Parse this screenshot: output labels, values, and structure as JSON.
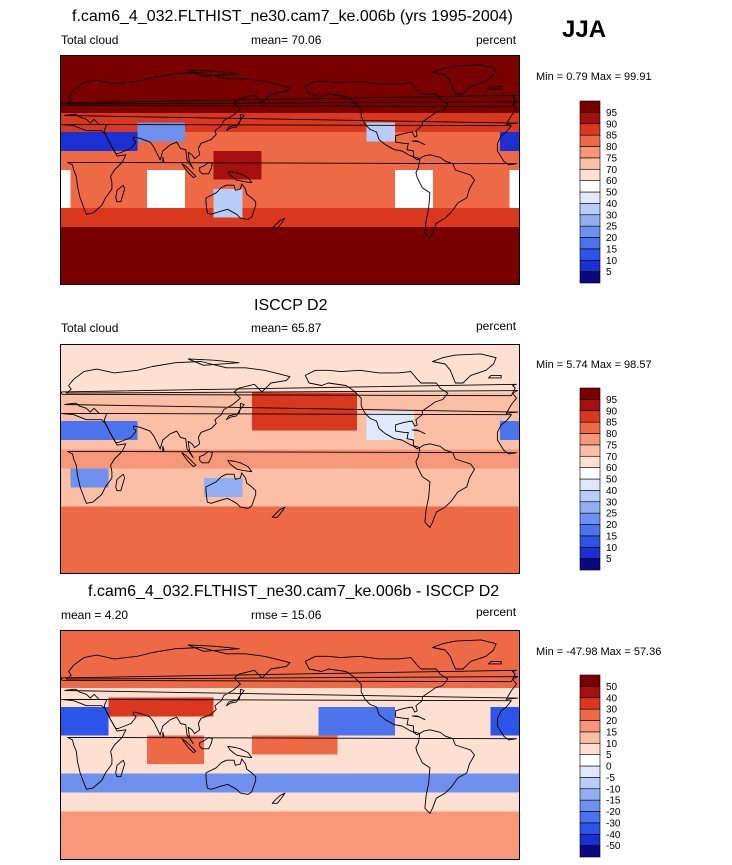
{
  "season": "JJA",
  "panels": [
    {
      "title": "f.cam6_4_032.FLTHIST_ne30.cam7_ke.006b (yrs 1995-2004)",
      "left_label": "Total cloud",
      "center_label": "mean=  70.06",
      "right_label": "percent",
      "minmax": "Min =   0.79 Max =  99.91",
      "colorbar": {
        "levels": [
          "5",
          "10",
          "15",
          "20",
          "25",
          "30",
          "40",
          "50",
          "60",
          "70",
          "75",
          "80",
          "85",
          "90",
          "95"
        ],
        "colors": [
          "#0a0a80",
          "#1a30d0",
          "#2a55e8",
          "#4b73ec",
          "#6e90ee",
          "#93aff2",
          "#b8cdf6",
          "#dfe9fb",
          "#ffffff",
          "#fde0d2",
          "#fbbfa5",
          "#f59778",
          "#ee6a47",
          "#d9381e",
          "#a50f0f",
          "#7a0000"
        ]
      },
      "chart_data": {
        "type": "heatmap",
        "variable": "Total cloud",
        "units": "percent",
        "mean": 70.06,
        "min": 0.79,
        "max": 99.91
      }
    },
    {
      "title": "ISCCP D2",
      "left_label": "Total cloud",
      "center_label": "mean=  65.87",
      "right_label": "percent",
      "minmax": "Min =   5.74 Max =  98.57",
      "colorbar": {
        "levels": [
          "5",
          "10",
          "15",
          "20",
          "25",
          "30",
          "40",
          "50",
          "60",
          "70",
          "75",
          "80",
          "85",
          "90",
          "95"
        ],
        "colors": [
          "#0a0a80",
          "#1a30d0",
          "#2a55e8",
          "#4b73ec",
          "#6e90ee",
          "#93aff2",
          "#b8cdf6",
          "#dfe9fb",
          "#ffffff",
          "#fde0d2",
          "#fbbfa5",
          "#f59778",
          "#ee6a47",
          "#d9381e",
          "#a50f0f",
          "#7a0000"
        ]
      },
      "chart_data": {
        "type": "heatmap",
        "variable": "Total cloud",
        "units": "percent",
        "mean": 65.87,
        "min": 5.74,
        "max": 98.57
      }
    },
    {
      "title": "f.cam6_4_032.FLTHIST_ne30.cam7_ke.006b - ISCCP D2",
      "left_label": "mean =   4.20",
      "center_label": "rmse =  15.06",
      "right_label": "percent",
      "minmax": "Min = -47.98 Max =  57.36",
      "colorbar": {
        "levels": [
          "-50",
          "-40",
          "-30",
          "-20",
          "-15",
          "-10",
          "-5",
          "0",
          "5",
          "10",
          "15",
          "20",
          "30",
          "40",
          "50"
        ],
        "colors": [
          "#0a0a80",
          "#1a30d0",
          "#2a55e8",
          "#4b73ec",
          "#6e90ee",
          "#93aff2",
          "#b8cdf6",
          "#dfe9fb",
          "#ffffff",
          "#fde0d2",
          "#fbbfa5",
          "#f59778",
          "#ee6a47",
          "#d9381e",
          "#a50f0f",
          "#7a0000"
        ]
      },
      "chart_data": {
        "type": "heatmap",
        "variable": "Total cloud difference",
        "units": "percent",
        "mean": 4.2,
        "rmse": 15.06,
        "min": -47.98,
        "max": 57.36
      }
    }
  ]
}
